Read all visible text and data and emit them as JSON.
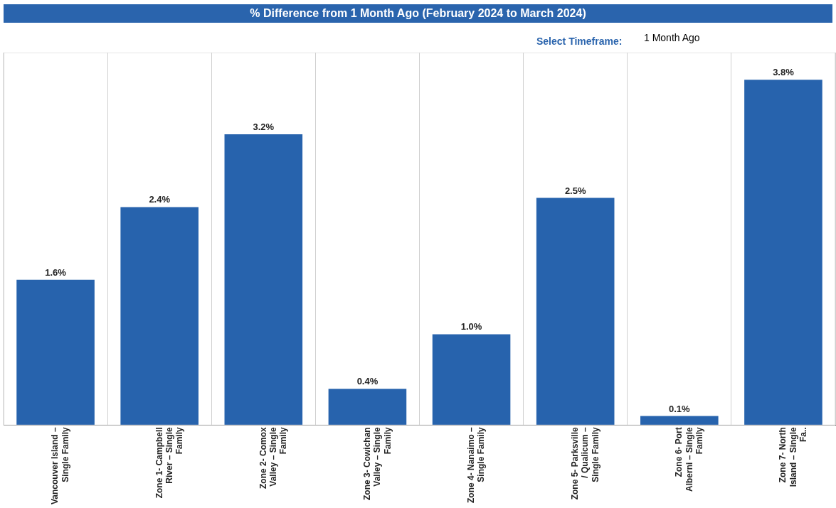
{
  "chart_data": {
    "type": "bar",
    "title": "% Difference from 1 Month Ago (February 2024 to March 2024)",
    "annotations": [
      "Select Timeframe:",
      "1 Month Ago"
    ],
    "categories": [
      "Vancouver Island – Single Family",
      "Zone 1- Campbell River – Single Family",
      "Zone 2- Comox Valley – Single Family",
      "Zone 3- Cowichan Valley – Single Family",
      "Zone 4- Nanaimo – Single Family",
      "Zone 5- Parksville / Qualicum – Single Family",
      "Zone 6- Port Alberni – Single Family",
      "Zone 7- North Island – Single Fa.."
    ],
    "values": [
      1.6,
      2.4,
      3.2,
      0.4,
      1.0,
      2.5,
      0.1,
      3.8
    ],
    "value_labels": [
      "1.6%",
      "2.4%",
      "3.2%",
      "0.4%",
      "1.0%",
      "2.5%",
      "0.1%",
      "3.8%"
    ],
    "color": "#2763ad",
    "ylim": [
      0,
      4.1
    ],
    "grid": "x",
    "legend": false
  }
}
